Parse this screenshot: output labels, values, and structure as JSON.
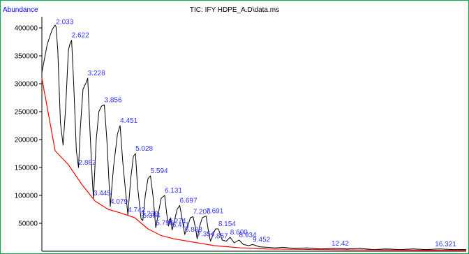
{
  "chart_data": {
    "type": "line",
    "title": "TIC: IFY HDPE_A.D\\data.ms",
    "ylabel": "Abundance",
    "xlabel": "",
    "xlim": [
      1.5,
      17.5
    ],
    "ylim": [
      0,
      420000
    ],
    "yticks": [
      50000,
      100000,
      150000,
      200000,
      250000,
      300000,
      350000,
      400000
    ],
    "colors": {
      "signal": "#000000",
      "baseline": "#ff0000",
      "labels": "#3333ff",
      "frame": "#00b050"
    },
    "series": [
      {
        "x": [
          1.5,
          1.6,
          1.7,
          1.8,
          1.9,
          2.0,
          2.033,
          2.1,
          2.2,
          2.3,
          2.4,
          2.5,
          2.55,
          2.622,
          2.7,
          2.8,
          2.882,
          2.95,
          3.05,
          3.15,
          3.228,
          3.3,
          3.4,
          3.445,
          3.55,
          3.65,
          3.75,
          3.856,
          3.95,
          4.079,
          4.2,
          4.35,
          4.451,
          4.55,
          4.65,
          4.742,
          4.85,
          4.95,
          5.028,
          5.1,
          5.2,
          5.239,
          5.304,
          5.4,
          5.5,
          5.594,
          5.7,
          5.796,
          5.9,
          6.0,
          6.131,
          6.2,
          6.274,
          6.35,
          6.411,
          6.5,
          6.6,
          6.697,
          6.8,
          6.888,
          7.0,
          7.1,
          7.2,
          7.3,
          7.354,
          7.45,
          7.55,
          7.691,
          7.8,
          7.857,
          7.95,
          8.05,
          8.154,
          8.3,
          8.45,
          8.6,
          8.75,
          8.934,
          9.1,
          9.3,
          9.452,
          9.7,
          10.0,
          10.3,
          10.6,
          11.0,
          11.5,
          12.0,
          12.5,
          13.0,
          13.5,
          14.0,
          14.5,
          15.0,
          15.5,
          16.0,
          16.5,
          17.0,
          17.5
        ],
        "y": [
          320000,
          345000,
          370000,
          385000,
          398000,
          405000,
          402000,
          360000,
          230000,
          190000,
          260000,
          360000,
          370000,
          378000,
          300000,
          180000,
          150000,
          220000,
          290000,
          300000,
          310000,
          230000,
          130000,
          95000,
          200000,
          250000,
          260000,
          262000,
          200000,
          80000,
          150000,
          210000,
          225000,
          160000,
          110000,
          65000,
          130000,
          170000,
          175000,
          120000,
          75000,
          58000,
          55000,
          100000,
          130000,
          135000,
          95000,
          42000,
          70000,
          95000,
          100000,
          70000,
          45000,
          60000,
          38000,
          55000,
          75000,
          82000,
          55000,
          30000,
          45000,
          60000,
          62000,
          40000,
          22000,
          45000,
          60000,
          63000,
          30000,
          18000,
          30000,
          40000,
          40000,
          20000,
          18000,
          25000,
          15000,
          20000,
          12000,
          10000,
          12000,
          8000,
          7000,
          6000,
          7000,
          5000,
          6000,
          4000,
          5000,
          4000,
          5000,
          3000,
          4000,
          3000,
          4000,
          3000,
          4000,
          3000,
          3000
        ]
      },
      {
        "x": [
          1.5,
          2.0,
          2.5,
          3.0,
          3.5,
          4.0,
          4.5,
          5.0,
          5.5,
          6.0,
          6.5,
          7.0,
          7.5,
          8.0,
          8.5,
          9.0,
          10.0,
          11.0,
          12.0,
          13.0,
          14.0,
          15.0,
          16.0,
          17.0,
          17.5
        ],
        "y": [
          310000,
          180000,
          155000,
          120000,
          90000,
          75000,
          68000,
          60000,
          40000,
          28000,
          22000,
          18000,
          14000,
          10000,
          8000,
          6000,
          4000,
          3500,
          3000,
          2500,
          2200,
          2000,
          1800,
          1600,
          1500
        ]
      }
    ],
    "peak_labels": [
      {
        "x": 2.033,
        "y": 402000,
        "text": "2.033"
      },
      {
        "x": 2.622,
        "y": 378000,
        "text": "2.622"
      },
      {
        "x": 3.228,
        "y": 310000,
        "text": "3.228"
      },
      {
        "x": 3.856,
        "y": 262000,
        "text": "3.856"
      },
      {
        "x": 4.451,
        "y": 225000,
        "text": "4.451"
      },
      {
        "x": 5.028,
        "y": 175000,
        "text": "5.028"
      },
      {
        "x": 5.594,
        "y": 135000,
        "text": "5.594"
      },
      {
        "x": 2.882,
        "y": 150000,
        "text": "2.882"
      },
      {
        "x": 3.445,
        "y": 95000,
        "text": "3.445"
      },
      {
        "x": 4.079,
        "y": 80000,
        "text": "4.079"
      },
      {
        "x": 4.742,
        "y": 65000,
        "text": "4.742"
      },
      {
        "x": 5.239,
        "y": 58000,
        "text": "5.239"
      },
      {
        "x": 5.304,
        "y": 55000,
        "text": "5.304"
      },
      {
        "x": 5.796,
        "y": 42000,
        "text": "5.796"
      },
      {
        "x": 6.131,
        "y": 100000,
        "text": "6.131"
      },
      {
        "x": 6.274,
        "y": 45000,
        "text": "6.274"
      },
      {
        "x": 6.411,
        "y": 38000,
        "text": "6.411"
      },
      {
        "x": 6.697,
        "y": 82000,
        "text": "6.697"
      },
      {
        "x": 6.888,
        "y": 30000,
        "text": "6.888"
      },
      {
        "x": 7.2,
        "y": 62000,
        "text": "7.200"
      },
      {
        "x": 7.354,
        "y": 22000,
        "text": "7.354"
      },
      {
        "x": 7.691,
        "y": 63000,
        "text": "7.691"
      },
      {
        "x": 7.857,
        "y": 18000,
        "text": "7.857"
      },
      {
        "x": 8.154,
        "y": 40000,
        "text": "8.154"
      },
      {
        "x": 8.6,
        "y": 25000,
        "text": "8.600"
      },
      {
        "x": 8.934,
        "y": 20000,
        "text": "8.934"
      },
      {
        "x": 9.452,
        "y": 12000,
        "text": "9.452"
      },
      {
        "x": 12.42,
        "y": 5000,
        "text": "12.42"
      },
      {
        "x": 16.321,
        "y": 4000,
        "text": "16.321"
      }
    ]
  }
}
